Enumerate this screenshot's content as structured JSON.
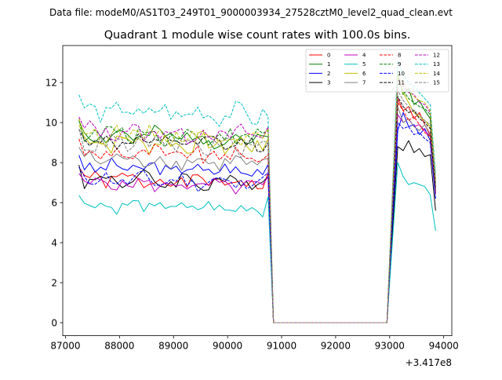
{
  "suptitle": "Data file: modeM0/AS1T03_249T01_9000003934_27528cztM0_level2_quad_clean.evt",
  "chart_data": {
    "type": "line",
    "title": "Quadrant 1 module wise count rates with 100.0s bins.",
    "xlabel": "",
    "ylabel": "",
    "x_offset_label": "+3.417e8",
    "xlim": [
      86950,
      94150
    ],
    "ylim": [
      -0.65,
      13.85
    ],
    "x_ticks": [
      87000,
      88000,
      89000,
      90000,
      91000,
      92000,
      93000,
      94000
    ],
    "x_tick_labels": [
      "87000",
      "88000",
      "89000",
      "90000",
      "91000",
      "92000",
      "93000",
      "94000"
    ],
    "y_ticks": [
      0,
      2,
      4,
      6,
      8,
      10,
      12
    ],
    "y_tick_labels": [
      "0",
      "2",
      "4",
      "6",
      "8",
      "10",
      "12"
    ],
    "grid": false,
    "legend_position": "top-right",
    "x_segments": [
      {
        "start": 87250,
        "step": 100,
        "count": 36
      },
      {
        "start": 93150,
        "step": 100,
        "count": 8
      }
    ],
    "gap_x": [
      90850,
      91950,
      92950
    ],
    "series": [
      {
        "name": "0",
        "color": "#ff0000",
        "dash": "solid",
        "base": 7.0,
        "noise": 0.35,
        "end": 7.5,
        "post": [
          11.2,
          10.6,
          10.8,
          10.2,
          10.5,
          9.9,
          9.4,
          6.5
        ]
      },
      {
        "name": "1",
        "color": "#008000",
        "dash": "solid",
        "base": 9.2,
        "noise": 0.4,
        "end": 9.3,
        "post": [
          12.5,
          11.4,
          11.7,
          10.9,
          11.1,
          10.6,
          10.2,
          6.6
        ]
      },
      {
        "name": "2",
        "color": "#0000ff",
        "dash": "solid",
        "base": 7.6,
        "noise": 0.35,
        "end": 7.9,
        "post": [
          9.6,
          10.5,
          9.8,
          9.9,
          9.4,
          9.7,
          9.1,
          6.2
        ]
      },
      {
        "name": "3",
        "color": "#000000",
        "dash": "solid",
        "base": 7.0,
        "noise": 0.4,
        "end": 7.3,
        "post": [
          8.8,
          8.6,
          9.1,
          8.5,
          8.7,
          8.3,
          8.4,
          5.6
        ]
      },
      {
        "name": "4",
        "color": "#bf00bf",
        "dash": "solid",
        "base": 6.8,
        "noise": 0.3,
        "end": 7.3,
        "post": [
          10.4,
          10.0,
          10.2,
          9.8,
          9.9,
          9.6,
          9.3,
          6.6
        ]
      },
      {
        "name": "5",
        "color": "#00bfbf",
        "dash": "solid",
        "base": 5.7,
        "noise": 0.3,
        "end": 6.3,
        "post": [
          8.0,
          7.3,
          6.9,
          7.0,
          6.9,
          6.8,
          6.4,
          4.6
        ]
      },
      {
        "name": "6",
        "color": "#bfbf00",
        "dash": "solid",
        "base": 8.9,
        "noise": 0.45,
        "end": 9.2,
        "post": [
          12.3,
          11.5,
          11.0,
          10.5,
          10.3,
          10.1,
          9.8,
          7.0
        ]
      },
      {
        "name": "7",
        "color": "#808080",
        "dash": "solid",
        "base": 8.0,
        "noise": 0.35,
        "end": 8.2,
        "post": [
          10.8,
          10.0,
          10.2,
          9.8,
          9.6,
          9.9,
          9.3,
          6.6
        ]
      },
      {
        "name": "8",
        "color": "#ff0000",
        "dash": "dashed",
        "base": 8.3,
        "noise": 0.4,
        "end": 8.4,
        "post": [
          11.0,
          10.6,
          10.1,
          10.3,
          9.9,
          9.5,
          9.3,
          6.4
        ]
      },
      {
        "name": "9",
        "color": "#008000",
        "dash": "dashed",
        "base": 9.3,
        "noise": 0.4,
        "end": 9.6,
        "post": [
          12.0,
          11.6,
          11.2,
          11.0,
          10.8,
          10.7,
          10.4,
          7.0
        ]
      },
      {
        "name": "10",
        "color": "#0000ff",
        "dash": "dashed",
        "base": 7.0,
        "noise": 0.35,
        "end": 7.5,
        "post": [
          10.0,
          9.7,
          9.8,
          9.4,
          9.5,
          9.2,
          9.0,
          6.2
        ]
      },
      {
        "name": "11",
        "color": "#000000",
        "dash": "dashed",
        "base": 8.9,
        "noise": 0.35,
        "end": 9.0,
        "post": [
          11.3,
          10.8,
          10.5,
          10.6,
          10.2,
          10.0,
          9.7,
          6.7
        ]
      },
      {
        "name": "12",
        "color": "#bf00bf",
        "dash": "dashed",
        "base": 9.4,
        "noise": 0.4,
        "end": 9.8,
        "post": [
          12.2,
          11.8,
          11.5,
          11.4,
          11.0,
          10.9,
          10.5,
          7.2
        ]
      },
      {
        "name": "13",
        "color": "#00bfbf",
        "dash": "dashed",
        "base": 10.4,
        "noise": 0.45,
        "end": 10.3,
        "post": [
          13.1,
          12.4,
          12.0,
          11.8,
          11.5,
          11.2,
          10.9,
          7.4
        ]
      },
      {
        "name": "14",
        "color": "#bfbf00",
        "dash": "dashed",
        "base": 9.3,
        "noise": 0.4,
        "end": 9.7,
        "post": [
          12.4,
          11.9,
          11.6,
          11.3,
          11.1,
          11.0,
          10.6,
          7.1
        ]
      },
      {
        "name": "15",
        "color": "#808080",
        "dash": "dashed",
        "base": 8.8,
        "noise": 0.4,
        "end": 9.0,
        "post": [
          11.6,
          11.1,
          10.8,
          10.6,
          10.4,
          10.1,
          9.9,
          6.9
        ]
      }
    ]
  }
}
